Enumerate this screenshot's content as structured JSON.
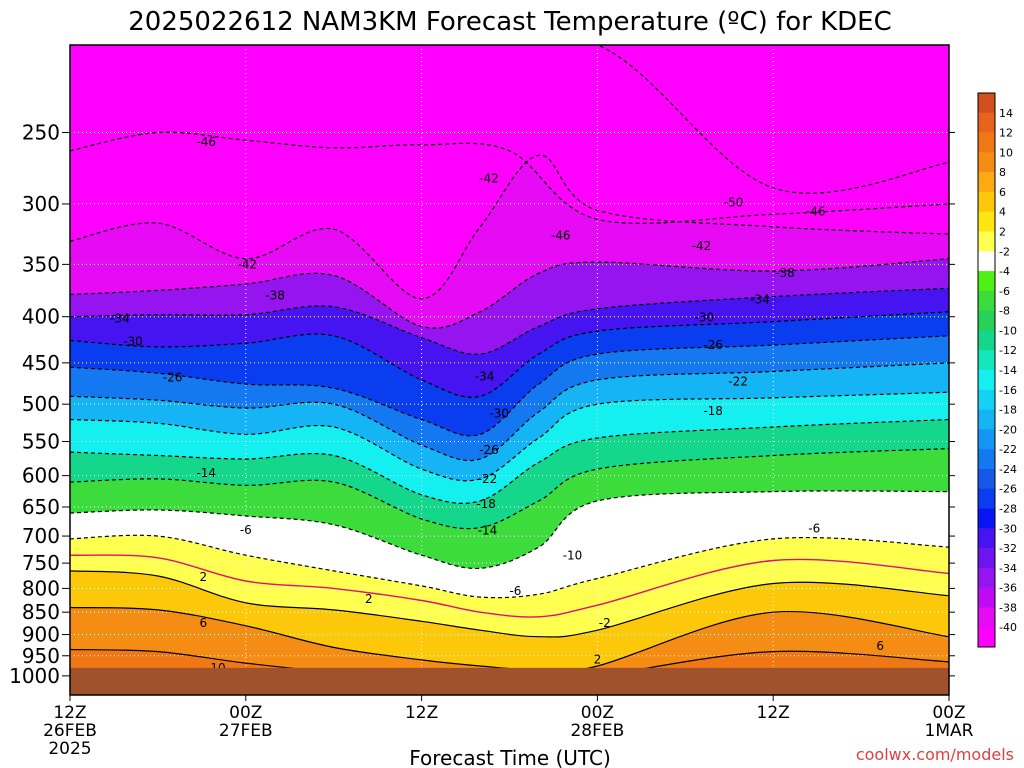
{
  "chart_data": {
    "type": "heatmap",
    "title": "2025022612 NAM3KM Forecast Temperature (ºC) for KDEC",
    "xlabel": "Forecast Time (UTC)",
    "ylabel": "",
    "credit": "coolwx.com/models",
    "x_ticks": [
      {
        "hours": 0,
        "line1": "12Z",
        "line2": "26FEB",
        "line3": "2025"
      },
      {
        "hours": 12,
        "line1": "00Z",
        "line2": "27FEB",
        "line3": ""
      },
      {
        "hours": 24,
        "line1": "12Z",
        "line2": "",
        "line3": ""
      },
      {
        "hours": 36,
        "line1": "00Z",
        "line2": "28FEB",
        "line3": ""
      },
      {
        "hours": 48,
        "line1": "12Z",
        "line2": "",
        "line3": ""
      },
      {
        "hours": 60,
        "line1": "00Z",
        "line2": "1MAR",
        "line3": ""
      }
    ],
    "xlim_hours": [
      0,
      60
    ],
    "y_axis": {
      "scale": "log-pressure",
      "units": "hPa",
      "inverted": true,
      "range": [
        200,
        1050
      ],
      "ticks": [
        250,
        300,
        350,
        400,
        450,
        500,
        550,
        600,
        650,
        700,
        750,
        800,
        850,
        900,
        950,
        1000
      ]
    },
    "colorbar": {
      "levels": [
        14,
        12,
        10,
        8,
        6,
        4,
        2,
        -2,
        -4,
        -6,
        -8,
        -10,
        -12,
        -14,
        -16,
        -18,
        -20,
        -22,
        -24,
        -26,
        -28,
        -30,
        -32,
        -34,
        -36,
        -38,
        -40
      ],
      "colors": [
        "#d2501e",
        "#e8641e",
        "#f07814",
        "#f58c14",
        "#fbaa0f",
        "#fdc80a",
        "#fde614",
        "#ffff50",
        "#ffffff",
        "#50f014",
        "#3cdc3c",
        "#28d25a",
        "#14d78c",
        "#14e6be",
        "#14f0f0",
        "#14d2f5",
        "#14b4f5",
        "#1496f5",
        "#1478f0",
        "#145ae6",
        "#0a3cf0",
        "#0a14f5",
        "#4614f0",
        "#6e14f0",
        "#9614f0",
        "#be0af5",
        "#e60af5",
        "#ff00ff"
      ]
    },
    "contours": [
      {
        "value": -50,
        "style": "dashed",
        "x_hours": [
          0,
          12,
          24,
          36,
          48,
          60
        ],
        "p_hpa": [
          200,
          200,
          200,
          200,
          288,
          270
        ]
      },
      {
        "value": -46,
        "style": "dashed",
        "x_hours": [
          0,
          6,
          12,
          18,
          24,
          30,
          36,
          48,
          60
        ],
        "p_hpa": [
          262,
          250,
          255,
          260,
          258,
          262,
          312,
          308,
          300
        ]
      },
      {
        "value": -42,
        "style": "dashed",
        "x_hours": [
          0,
          6,
          12,
          18,
          24,
          28,
          32,
          36,
          48,
          60
        ],
        "p_hpa": [
          330,
          315,
          345,
          320,
          382,
          318,
          265,
          305,
          318,
          324
        ]
      },
      {
        "value": -38,
        "style": "dashed",
        "x_hours": [
          0,
          6,
          12,
          18,
          24,
          28,
          32,
          36,
          48,
          60
        ],
        "p_hpa": [
          378,
          374,
          368,
          360,
          410,
          395,
          358,
          348,
          356,
          345
        ]
      },
      {
        "value": -34,
        "style": "dashed",
        "x_hours": [
          0,
          6,
          12,
          18,
          24,
          28,
          32,
          36,
          48,
          60
        ],
        "p_hpa": [
          400,
          398,
          398,
          390,
          422,
          440,
          410,
          392,
          380,
          372
        ]
      },
      {
        "value": -30,
        "style": "dashed",
        "x_hours": [
          0,
          6,
          12,
          18,
          24,
          28,
          32,
          36,
          48,
          60
        ],
        "p_hpa": [
          425,
          432,
          428,
          420,
          470,
          490,
          440,
          415,
          405,
          395
        ]
      },
      {
        "value": -26,
        "style": "dashed",
        "x_hours": [
          0,
          6,
          12,
          18,
          24,
          28,
          32,
          36,
          48,
          60
        ],
        "p_hpa": [
          455,
          462,
          475,
          480,
          520,
          540,
          475,
          440,
          430,
          420
        ]
      },
      {
        "value": -22,
        "style": "dashed",
        "x_hours": [
          0,
          6,
          12,
          18,
          24,
          28,
          32,
          36,
          48,
          60
        ],
        "p_hpa": [
          490,
          495,
          505,
          500,
          555,
          575,
          510,
          470,
          460,
          450
        ]
      },
      {
        "value": -18,
        "style": "dashed",
        "x_hours": [
          0,
          6,
          12,
          18,
          24,
          28,
          32,
          36,
          48,
          60
        ],
        "p_hpa": [
          520,
          525,
          540,
          530,
          590,
          605,
          545,
          500,
          492,
          485
        ]
      },
      {
        "value": -14,
        "style": "dashed",
        "x_hours": [
          0,
          6,
          12,
          18,
          24,
          28,
          32,
          36,
          48,
          60
        ],
        "p_hpa": [
          565,
          570,
          575,
          570,
          630,
          640,
          580,
          545,
          530,
          520
        ]
      },
      {
        "value": -10,
        "style": "dashed",
        "x_hours": [
          0,
          6,
          12,
          18,
          24,
          28,
          32,
          36,
          48,
          60
        ],
        "p_hpa": [
          610,
          605,
          615,
          610,
          670,
          685,
          640,
          590,
          570,
          560
        ]
      },
      {
        "value": -6,
        "style": "dashed",
        "x_hours": [
          0,
          6,
          12,
          18,
          24,
          28,
          32,
          36,
          48,
          60
        ],
        "p_hpa": [
          660,
          655,
          665,
          680,
          735,
          760,
          720,
          640,
          625,
          625
        ]
      },
      {
        "value": -2,
        "style": "dashed",
        "x_hours": [
          0,
          6,
          12,
          18,
          24,
          28,
          32,
          36,
          48,
          60
        ],
        "p_hpa": [
          705,
          700,
          735,
          765,
          795,
          818,
          812,
          780,
          705,
          720
        ]
      },
      {
        "value": 2,
        "style": "solid",
        "x_hours": [
          0,
          6,
          12,
          18,
          24,
          28,
          32,
          36,
          48,
          60
        ],
        "p_hpa": [
          765,
          775,
          830,
          845,
          870,
          890,
          905,
          890,
          790,
          815
        ]
      },
      {
        "value": 6,
        "style": "solid",
        "x_hours": [
          0,
          6,
          12,
          18,
          24,
          28,
          32,
          36,
          48,
          60
        ],
        "p_hpa": [
          840,
          845,
          880,
          930,
          960,
          975,
          985,
          975,
          850,
          905
        ]
      },
      {
        "value": 10,
        "style": "solid",
        "x_hours": [
          0,
          6,
          12,
          18,
          24,
          28,
          32,
          36,
          48,
          60
        ],
        "p_hpa": [
          935,
          940,
          968,
          990,
          1000,
          1005,
          1008,
          1000,
          940,
          965
        ]
      }
    ],
    "freezing_line": {
      "value": 0,
      "color": "#e0106e",
      "x_hours": [
        0,
        6,
        12,
        18,
        24,
        28,
        32,
        36,
        48,
        60
      ],
      "p_hpa": [
        735,
        740,
        785,
        800,
        825,
        850,
        860,
        835,
        745,
        770
      ]
    },
    "contour_labels": [
      {
        "text": "-46",
        "hours": 9.3,
        "p_hpa": 256
      },
      {
        "text": "-42",
        "hours": 28.6,
        "p_hpa": 281
      },
      {
        "text": "-50",
        "hours": 45.3,
        "p_hpa": 299
      },
      {
        "text": "-46",
        "hours": 50.9,
        "p_hpa": 306
      },
      {
        "text": "-46",
        "hours": 33.5,
        "p_hpa": 325
      },
      {
        "text": "-42",
        "hours": 43.1,
        "p_hpa": 334
      },
      {
        "text": "-42",
        "hours": 12.1,
        "p_hpa": 350
      },
      {
        "text": "-38",
        "hours": 48.8,
        "p_hpa": 358
      },
      {
        "text": "-38",
        "hours": 14.0,
        "p_hpa": 379
      },
      {
        "text": "-34",
        "hours": 47.1,
        "p_hpa": 383
      },
      {
        "text": "-34",
        "hours": 3.4,
        "p_hpa": 402
      },
      {
        "text": "-30",
        "hours": 43.3,
        "p_hpa": 401
      },
      {
        "text": "-30",
        "hours": 4.3,
        "p_hpa": 426
      },
      {
        "text": "-26",
        "hours": 43.9,
        "p_hpa": 430
      },
      {
        "text": "-34",
        "hours": 28.3,
        "p_hpa": 466
      },
      {
        "text": "-26",
        "hours": 7.0,
        "p_hpa": 467
      },
      {
        "text": "-22",
        "hours": 45.6,
        "p_hpa": 472
      },
      {
        "text": "-30",
        "hours": 29.3,
        "p_hpa": 512
      },
      {
        "text": "-18",
        "hours": 43.9,
        "p_hpa": 509
      },
      {
        "text": "-26",
        "hours": 28.6,
        "p_hpa": 562
      },
      {
        "text": "-22",
        "hours": 28.5,
        "p_hpa": 605
      },
      {
        "text": "-14",
        "hours": 9.3,
        "p_hpa": 596
      },
      {
        "text": "-18",
        "hours": 28.4,
        "p_hpa": 645
      },
      {
        "text": "-6",
        "hours": 12.0,
        "p_hpa": 689
      },
      {
        "text": "-14",
        "hours": 28.5,
        "p_hpa": 690
      },
      {
        "text": "-6",
        "hours": 50.8,
        "p_hpa": 687
      },
      {
        "text": "-10",
        "hours": 34.3,
        "p_hpa": 736
      },
      {
        "text": "2",
        "hours": 9.1,
        "p_hpa": 777
      },
      {
        "text": "-6",
        "hours": 30.4,
        "p_hpa": 805
      },
      {
        "text": "2",
        "hours": 20.4,
        "p_hpa": 822
      },
      {
        "text": "6",
        "hours": 9.1,
        "p_hpa": 874
      },
      {
        "text": "-2",
        "hours": 36.5,
        "p_hpa": 874
      },
      {
        "text": "6",
        "hours": 55.3,
        "p_hpa": 927
      },
      {
        "text": "2",
        "hours": 36.0,
        "p_hpa": 959
      },
      {
        "text": "10",
        "hours": 10.1,
        "p_hpa": 980
      },
      {
        "text": "2",
        "hours": 26.2,
        "p_hpa": 999
      }
    ],
    "ground_below_hpa": 1000,
    "ground_color": "#a0522d"
  }
}
